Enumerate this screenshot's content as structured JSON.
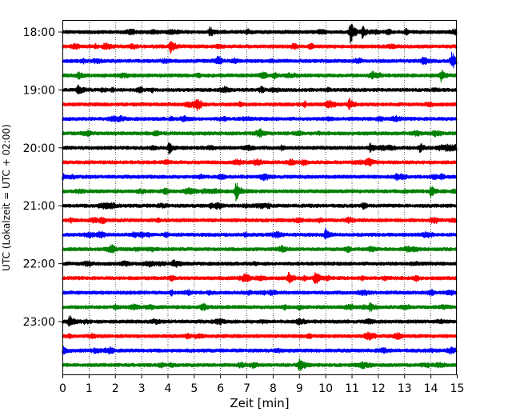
{
  "chart_data": {
    "type": "line",
    "subtype": "helicorder-seismogram",
    "title": "",
    "xlabel": "Zeit  [min]",
    "ylabel": "UTC (Lokalzeit = UTC + 02:00)",
    "xlim": [
      0,
      15
    ],
    "x_ticks": [
      "0",
      "1",
      "2",
      "3",
      "4",
      "5",
      "6",
      "7",
      "8",
      "9",
      "10",
      "11",
      "12",
      "13",
      "14",
      "15"
    ],
    "y_tick_labels": [
      "18:00",
      "19:00",
      "20:00",
      "21:00",
      "22:00",
      "23:00"
    ],
    "grid": "vertical dotted lines at each minute",
    "trace_interval_min": 15,
    "trace_colors": [
      "#000000",
      "#ff0000",
      "#0000ff",
      "#008000"
    ],
    "trace_start_times": [
      "18:00",
      "18:15",
      "18:30",
      "18:45",
      "19:00",
      "19:15",
      "19:30",
      "19:45",
      "20:00",
      "20:15",
      "20:30",
      "20:45",
      "21:00",
      "21:15",
      "21:30",
      "21:45",
      "22:00",
      "22:15",
      "22:30",
      "22:45",
      "23:00",
      "23:15",
      "23:30",
      "23:45"
    ],
    "notable_events": [
      {
        "trace": "18:00",
        "minute": 10.95,
        "level": 1.0
      },
      {
        "trace": "18:00",
        "minute": 11.4,
        "level": 0.5
      },
      {
        "trace": "18:00",
        "minute": 5.6,
        "level": 0.35
      },
      {
        "trace": "18:15",
        "minute": 4.1,
        "level": 0.6
      },
      {
        "trace": "18:30",
        "minute": 14.8,
        "level": 0.55
      },
      {
        "trace": "18:30",
        "minute": 13.7,
        "level": 0.4
      },
      {
        "trace": "18:45",
        "minute": 14.4,
        "level": 0.4
      },
      {
        "trace": "18:45",
        "minute": 0.6,
        "level": 0.3
      },
      {
        "trace": "19:00",
        "minute": 0.6,
        "level": 0.4
      },
      {
        "trace": "19:15",
        "minute": 10.9,
        "level": 0.4
      },
      {
        "trace": "20:00",
        "minute": 4.05,
        "level": 0.45
      },
      {
        "trace": "20:00",
        "minute": 11.7,
        "level": 0.3
      },
      {
        "trace": "20:00",
        "minute": 13.6,
        "level": 0.3
      },
      {
        "trace": "20:45",
        "minute": 6.6,
        "level": 0.75
      },
      {
        "trace": "20:45",
        "minute": 14.0,
        "level": 0.45
      },
      {
        "trace": "21:30",
        "minute": 10.0,
        "level": 0.4
      },
      {
        "trace": "22:15",
        "minute": 9.6,
        "level": 0.65
      },
      {
        "trace": "22:15",
        "minute": 8.6,
        "level": 0.45
      },
      {
        "trace": "22:45",
        "minute": 5.3,
        "level": 0.35
      },
      {
        "trace": "22:45",
        "minute": 11.7,
        "level": 0.35
      },
      {
        "trace": "23:00",
        "minute": 0.25,
        "level": 0.55
      },
      {
        "trace": "23:45",
        "minute": 9.0,
        "level": 0.45
      }
    ]
  }
}
